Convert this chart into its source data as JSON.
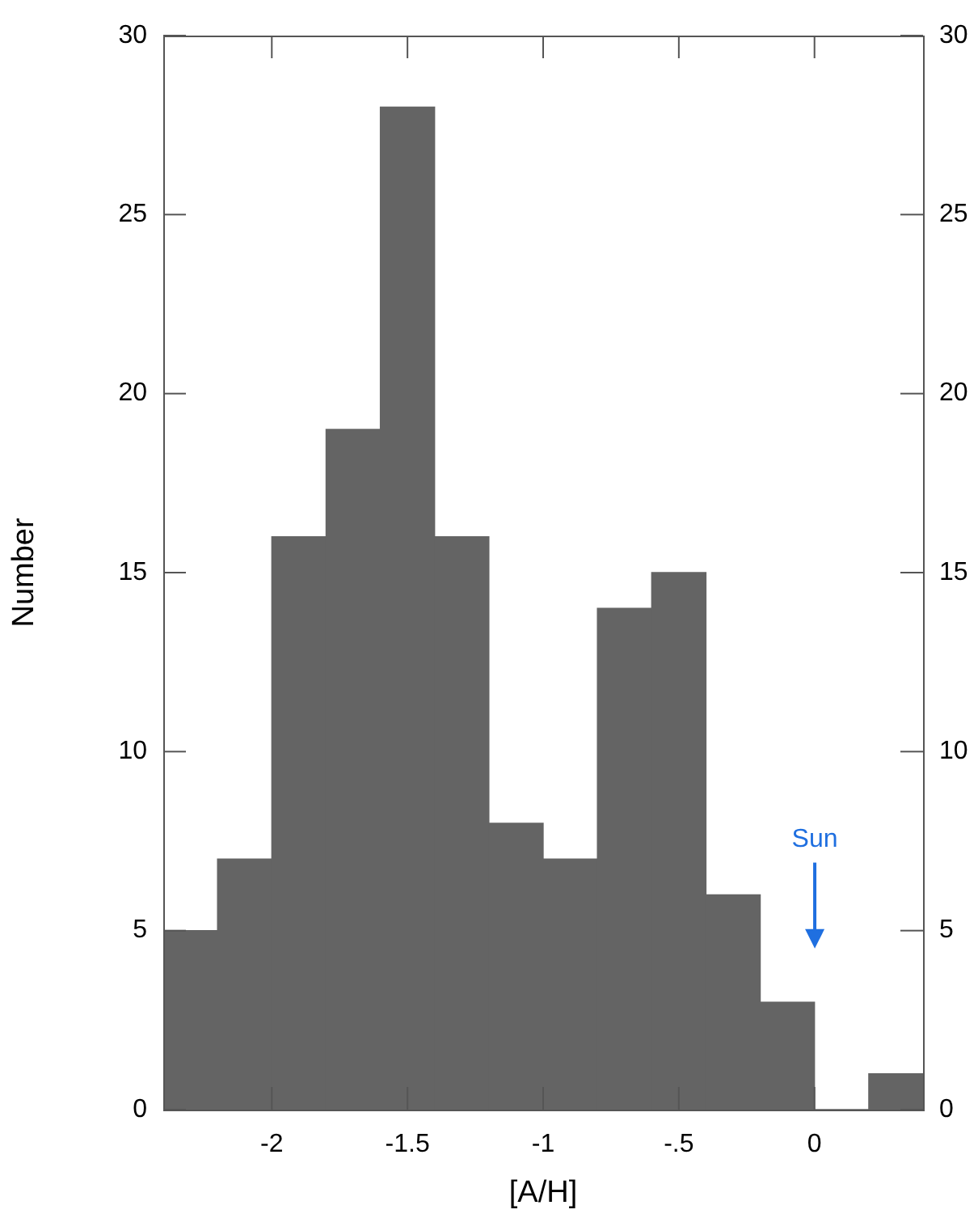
{
  "chart_data": {
    "type": "histogram",
    "xlabel": "[A/H]",
    "ylabel": "Number",
    "bins": [
      -2.4,
      -2.2,
      -2.0,
      -1.8,
      -1.6,
      -1.4,
      -1.2,
      -1.0,
      -0.8,
      -0.6,
      -0.4,
      -0.2,
      0,
      0.2,
      0.4
    ],
    "values": [
      5,
      7,
      16,
      19,
      28,
      16,
      8,
      7,
      14,
      15,
      6,
      3,
      0,
      1
    ],
    "color": "#646464",
    "xlim": [
      -2.4,
      0.4
    ],
    "xticks": [
      -2,
      {
        "value": -1.5,
        "label": "-1.5"
      },
      -1,
      {
        "value": -0.5,
        "label": "-.5"
      },
      0
    ],
    "ylim": [
      0,
      30
    ],
    "yticks": [
      0,
      5,
      10,
      15,
      20,
      25,
      30
    ],
    "y2lim": [
      0,
      30
    ],
    "y2ticks": [
      0,
      5,
      10,
      15,
      20,
      25,
      30
    ],
    "grid": false,
    "annotations": [
      "Sun"
    ]
  }
}
